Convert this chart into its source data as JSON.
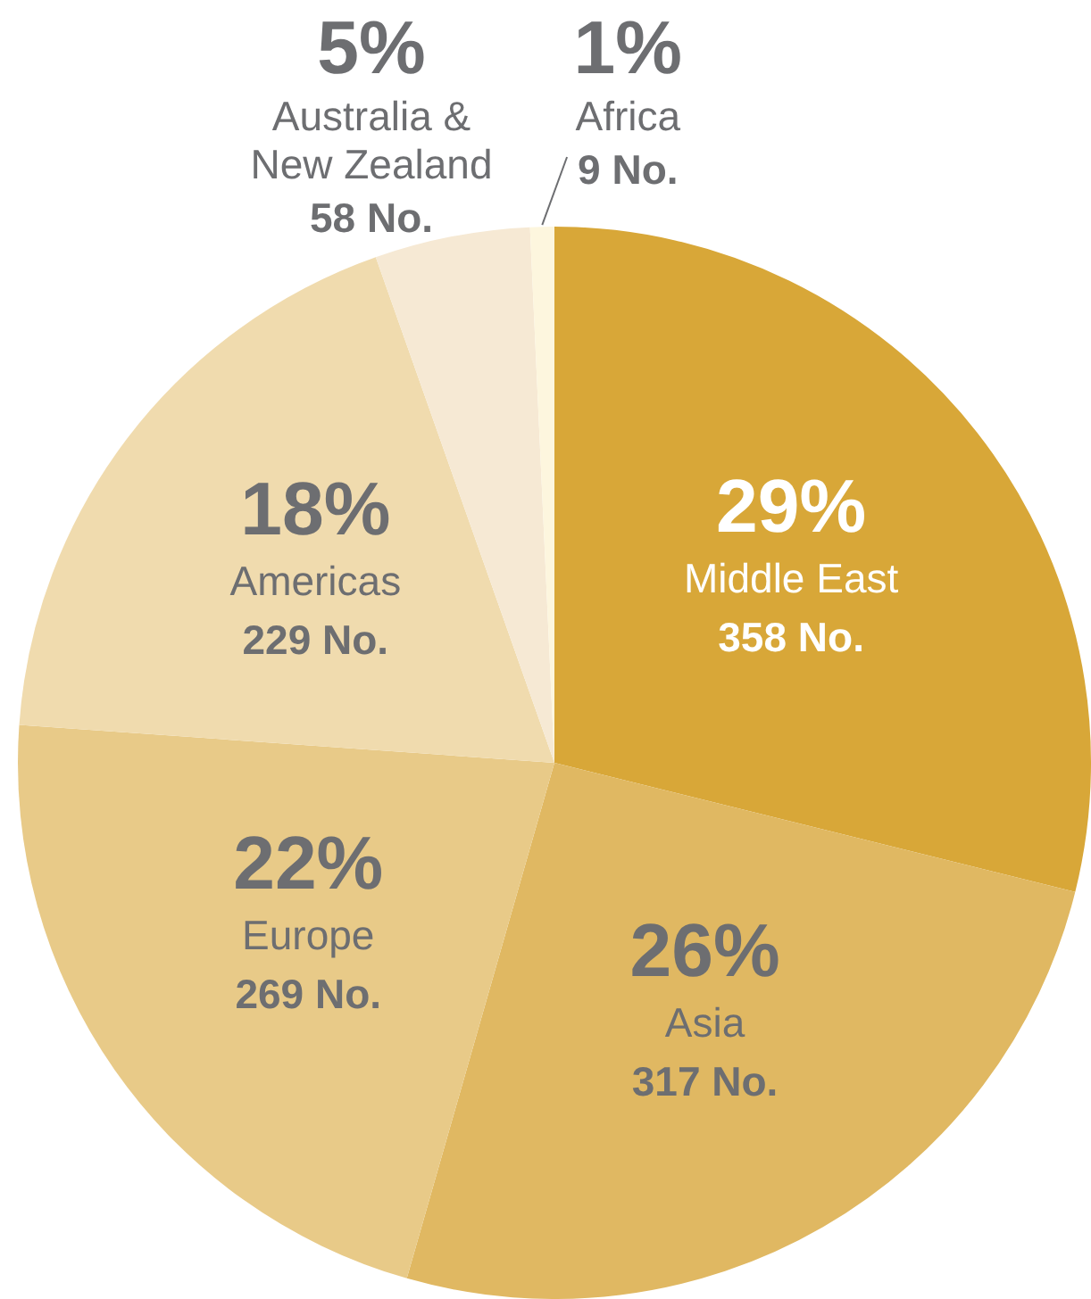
{
  "chart_data": {
    "type": "pie",
    "categories": [
      "Middle East",
      "Asia",
      "Europe",
      "Americas",
      "Australia & New Zealand",
      "Africa"
    ],
    "values": [
      358,
      317,
      269,
      229,
      58,
      9
    ],
    "colors": [
      "#d8a738",
      "#e0b862",
      "#e8ca88",
      "#f0dbae",
      "#f6e9d4",
      "#fdf6de"
    ],
    "value_labels": [
      "358 No.",
      "317 No.",
      "269 No.",
      "229 No.",
      "58 No.",
      "9 No."
    ],
    "annotations": [
      {
        "text": "29%",
        "x": "Middle East"
      },
      {
        "text": "26%",
        "x": "Asia"
      },
      {
        "text": "22%",
        "x": "Europe"
      },
      {
        "text": "18%",
        "x": "Americas"
      },
      {
        "text": "5%",
        "x": "Australia & New Zealand"
      },
      {
        "text": "1%",
        "x": "Africa"
      }
    ],
    "legend": false
  }
}
